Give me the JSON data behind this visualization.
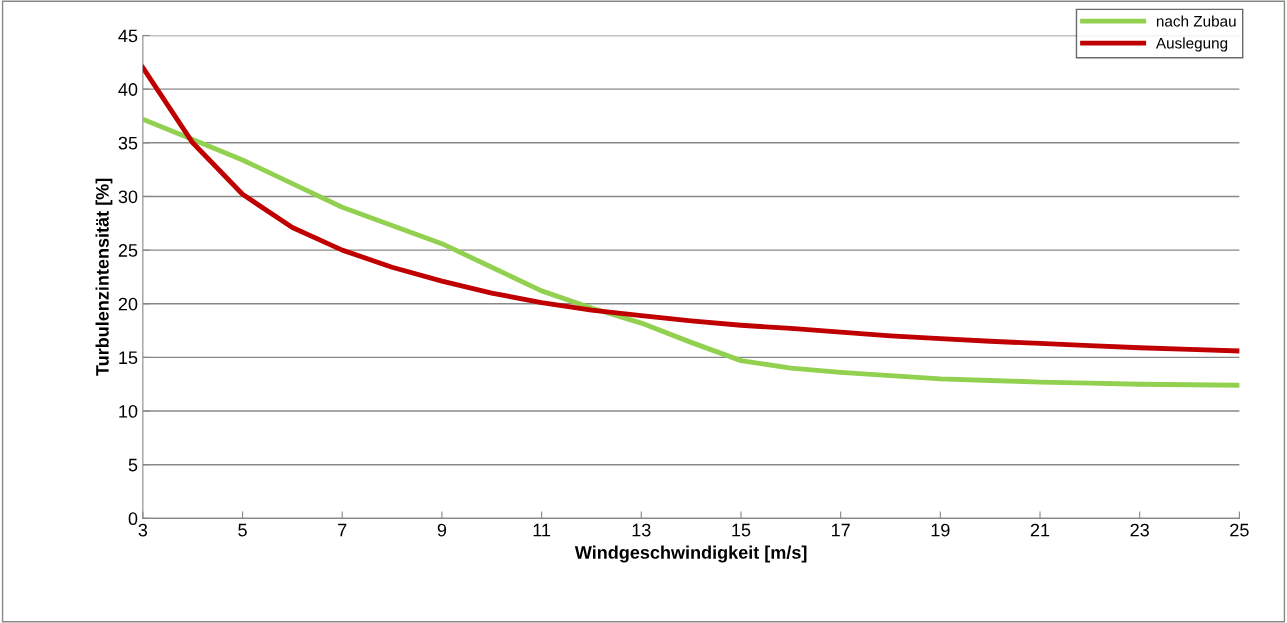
{
  "chart_data": {
    "type": "line",
    "xlabel": "Windgeschwindigkeit [m/s]",
    "ylabel": "Turbulenzintensität [%]",
    "x": [
      3,
      4,
      5,
      6,
      7,
      8,
      9,
      10,
      11,
      12,
      13,
      14,
      15,
      16,
      17,
      18,
      19,
      20,
      21,
      22,
      23,
      24,
      25
    ],
    "series": [
      {
        "name": "nach Zubau",
        "color": "#92d050",
        "values": [
          37.2,
          35.3,
          33.4,
          31.2,
          29.0,
          27.3,
          25.6,
          23.4,
          21.2,
          19.6,
          18.2,
          16.4,
          14.7,
          14.0,
          13.6,
          13.3,
          13.0,
          12.85,
          12.7,
          12.6,
          12.5,
          12.45,
          12.4
        ]
      },
      {
        "name": "Auslegung",
        "color": "#c00000",
        "values": [
          42.0,
          35.0,
          30.2,
          27.1,
          25.0,
          23.4,
          22.1,
          21.0,
          20.1,
          19.4,
          18.9,
          18.4,
          18.0,
          17.7,
          17.35,
          17.0,
          16.75,
          16.5,
          16.3,
          16.1,
          15.9,
          15.75,
          15.6
        ]
      }
    ],
    "xlim": [
      3,
      25
    ],
    "xticks": [
      3,
      5,
      7,
      9,
      11,
      13,
      15,
      17,
      19,
      21,
      23,
      25
    ],
    "ylim": [
      0,
      45
    ],
    "yticks": [
      0,
      5,
      10,
      15,
      20,
      25,
      30,
      35,
      40,
      45
    ],
    "grid": "y",
    "legend": "top right",
    "marker": "none",
    "line_style": "solid"
  }
}
